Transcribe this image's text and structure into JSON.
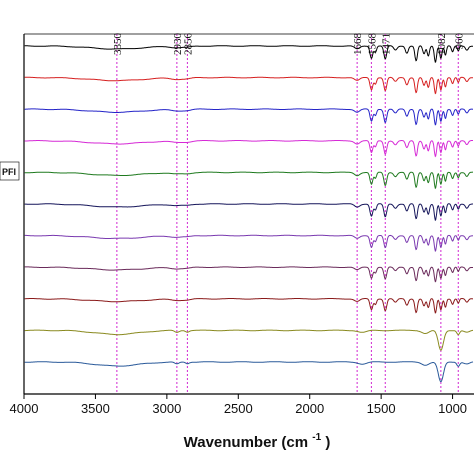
{
  "chart_data": {
    "type": "line",
    "xlabel": "Wavenumber (cm",
    "xlabel_superscript": "-1",
    "xlabel_close": ")",
    "xlim": [
      4000,
      850
    ],
    "x_reversed": true,
    "x_ticks": [
      4000,
      3500,
      3000,
      2500,
      2000,
      1500,
      1000
    ],
    "x_tick_labels": [
      "4000",
      "3500",
      "3000",
      "2500",
      "2000",
      "1500",
      "1000"
    ],
    "y_ticks_visible": false,
    "grid": false,
    "reference_lines": [
      {
        "x": 3350,
        "label": "3350",
        "color": "#d63ad6"
      },
      {
        "x": 2930,
        "label": "2930",
        "color": "#d63ad6"
      },
      {
        "x": 2856,
        "label": "2856",
        "color": "#d63ad6"
      },
      {
        "x": 1668,
        "label": "1668",
        "color": "#d63ad6"
      },
      {
        "x": 1568,
        "label": "1568",
        "color": "#d63ad6"
      },
      {
        "x": 1471,
        "label": "1471",
        "color": "#d63ad6"
      },
      {
        "x": 1082,
        "label": "1082",
        "color": "#d63ad6"
      },
      {
        "x": 960,
        "label": "960",
        "color": "#d63ad6"
      }
    ],
    "legend": {
      "placement": "left",
      "text": "PFI"
    },
    "series": [
      {
        "color": "#000000",
        "style": "polymer",
        "depth": 1.0
      },
      {
        "color": "#d62020",
        "style": "polymer",
        "depth": 1.0
      },
      {
        "color": "#2424c8",
        "style": "polymer",
        "depth": 1.0
      },
      {
        "color": "#d62ad6",
        "style": "polymer",
        "depth": 1.0
      },
      {
        "color": "#1f7a1f",
        "style": "polymer",
        "depth": 1.0
      },
      {
        "color": "#15155a",
        "style": "polymer",
        "depth": 1.0
      },
      {
        "color": "#7a3ab0",
        "style": "polymer",
        "depth": 0.95
      },
      {
        "color": "#6a2a5a",
        "style": "polymer",
        "depth": 0.9
      },
      {
        "color": "#8a1a1a",
        "style": "polymer",
        "depth": 0.9
      },
      {
        "color": "#8a8a20",
        "style": "silica",
        "depth": 1.0
      },
      {
        "color": "#2a5a9a",
        "style": "silica",
        "depth": 1.0
      }
    ]
  }
}
